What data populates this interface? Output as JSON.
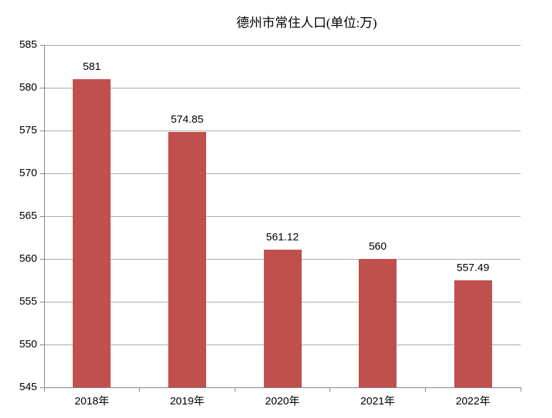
{
  "chart_data": {
    "type": "bar",
    "title": "德州市常住人口(单位:万)",
    "categories": [
      "2018年",
      "2019年",
      "2020年",
      "2021年",
      "2022年"
    ],
    "values": [
      581,
      574.85,
      561.12,
      560,
      557.49
    ],
    "value_labels": [
      "581",
      "574.85",
      "561.12",
      "560",
      "557.49"
    ],
    "xlabel": "",
    "ylabel": "",
    "ylim": [
      545,
      585
    ],
    "yticks": [
      585,
      580,
      575,
      570,
      565,
      560,
      555,
      550,
      545
    ],
    "grid": true,
    "legend": false,
    "bar_color": "#c0504d",
    "gridline_color": "#a6a6a6",
    "axis_color": "#7f7f7f",
    "text_color": "#000000"
  }
}
